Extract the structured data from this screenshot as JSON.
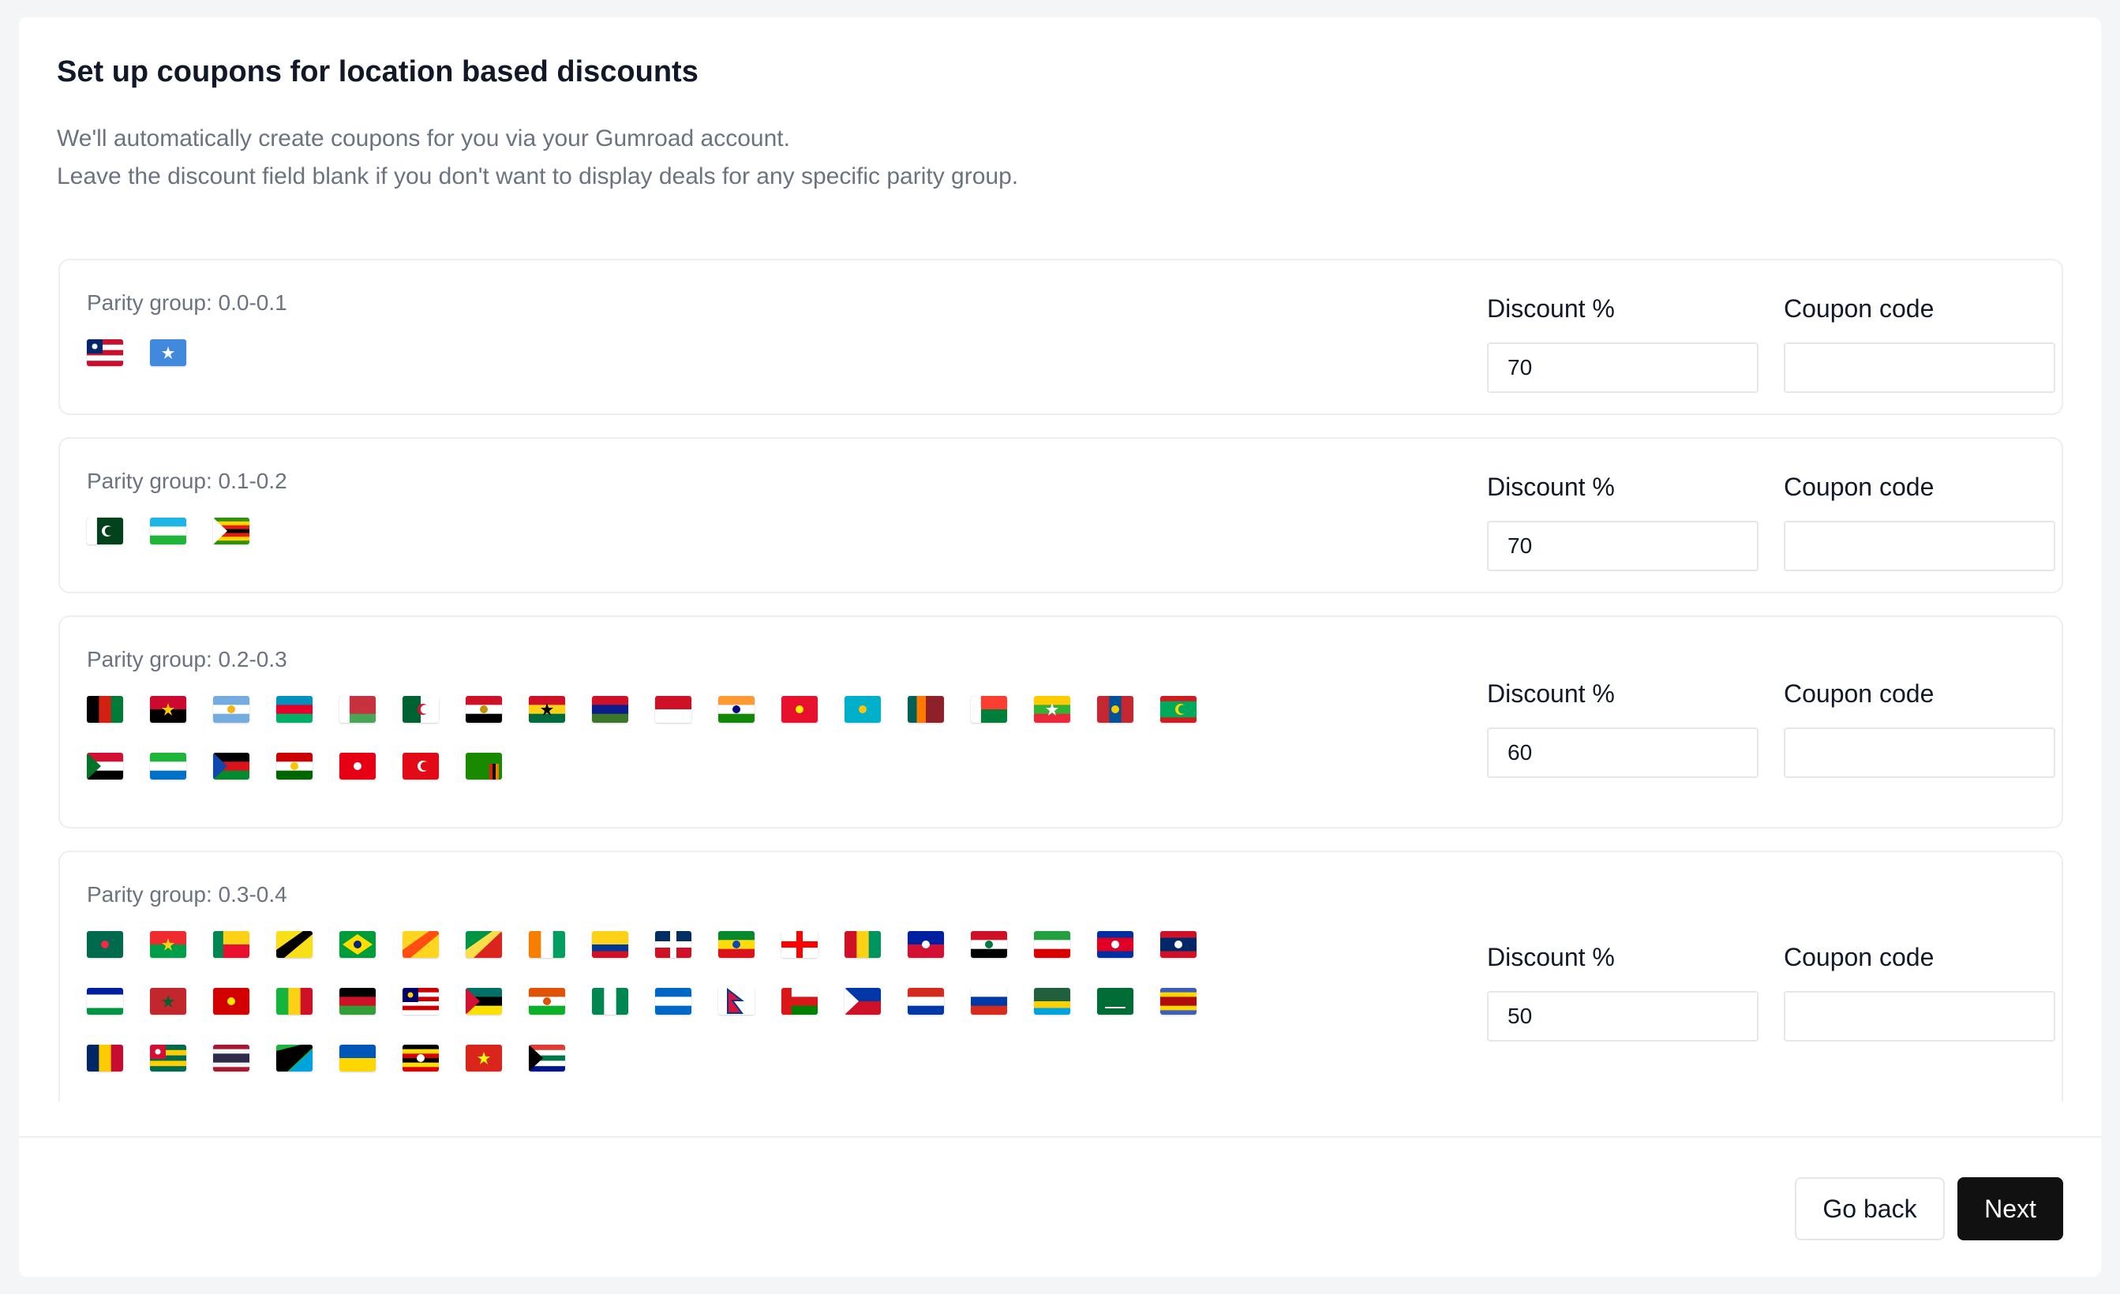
{
  "header": {
    "title": "Set up coupons for location based discounts",
    "description_line1": "We'll automatically create coupons for you via your Gumroad account.",
    "description_line2": "Leave the discount field blank if you don't want to display deals for any specific parity group."
  },
  "fields": {
    "discount_label": "Discount %",
    "coupon_label": "Coupon code"
  },
  "groups": [
    {
      "label": "Parity group: 0.0-0.1",
      "discount": "70",
      "coupon": "",
      "flags": [
        "LR",
        "SO"
      ]
    },
    {
      "label": "Parity group: 0.1-0.2",
      "discount": "70",
      "coupon": "",
      "flags": [
        "PK",
        "UZ",
        "ZW"
      ]
    },
    {
      "label": "Parity group: 0.2-0.3",
      "discount": "60",
      "coupon": "",
      "flags": [
        "AF",
        "AO",
        "AR",
        "AZ",
        "BY",
        "DZ",
        "EG",
        "GH",
        "GM",
        "ID",
        "IN",
        "KG",
        "KZ",
        "LK",
        "MG",
        "MM",
        "MN",
        "MR",
        "SD",
        "SL",
        "SS",
        "TJ",
        "TN",
        "TR",
        "ZM"
      ]
    },
    {
      "label": "Parity group: 0.3-0.4",
      "discount": "50",
      "coupon": "",
      "flags": [
        "BD",
        "BF",
        "BJ",
        "BN",
        "BR",
        "BT",
        "CG",
        "CI",
        "CO",
        "DO",
        "ET",
        "GE",
        "GN",
        "HT",
        "IQ",
        "IR",
        "KH",
        "LA",
        "LS",
        "MA",
        "MK",
        "ML",
        "MW",
        "MY",
        "MZ",
        "NE",
        "NG",
        "NI",
        "NP",
        "OM",
        "PH",
        "PY",
        "RU",
        "RW",
        "SA",
        "SZ",
        "TD",
        "TG",
        "TH",
        "TZ",
        "UA",
        "UG",
        "VN",
        "ZA"
      ]
    }
  ],
  "footer": {
    "back_label": "Go back",
    "next_label": "Next"
  },
  "colors": {
    "primary_button": "#111111",
    "muted_text": "#6b7280",
    "border": "#e5e7eb"
  }
}
